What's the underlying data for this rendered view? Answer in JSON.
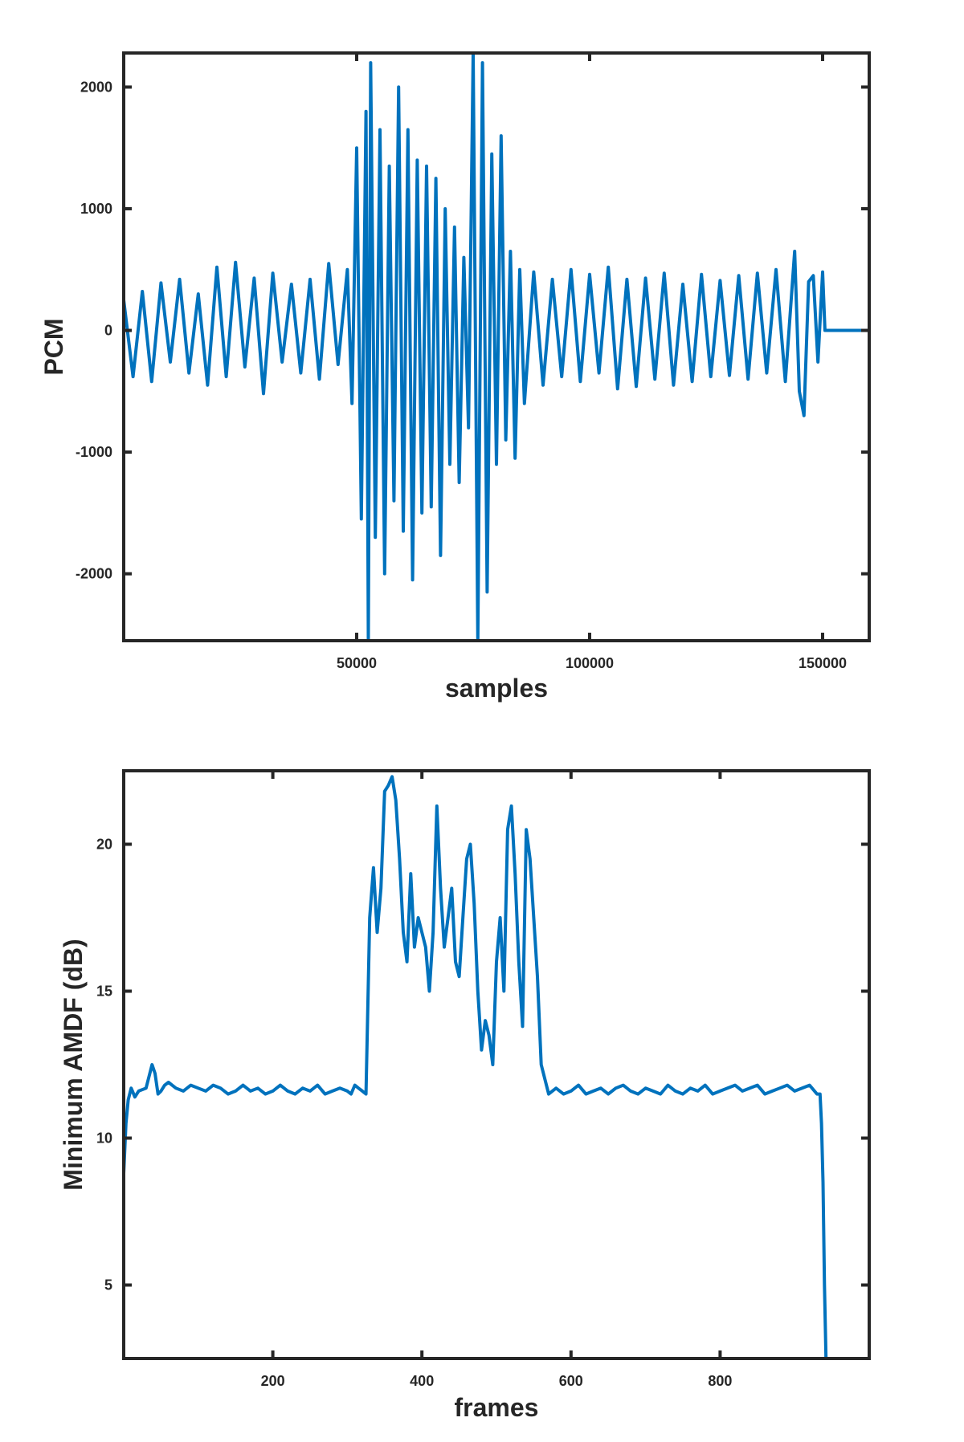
{
  "chart_data": [
    {
      "type": "line",
      "title": "",
      "xlabel": "samples",
      "ylabel": "PCM",
      "xlim": [
        0,
        160000
      ],
      "ylim": [
        -2550,
        2280
      ],
      "xticks": [
        50000,
        100000,
        150000
      ],
      "yticks": [
        -2000,
        -1000,
        0,
        1000,
        2000
      ],
      "xtick_labels": [
        "50000",
        "100000",
        "150000"
      ],
      "ytick_labels": [
        "-2000",
        "-1000",
        "0",
        "1000",
        "2000"
      ],
      "grid": false,
      "color": "#0072bd",
      "series": [
        {
          "x": [
            0,
            2000,
            4000,
            6000,
            8000,
            10000,
            12000,
            14000,
            16000,
            18000,
            20000,
            22000,
            24000,
            26000,
            28000,
            30000,
            32000,
            34000,
            36000,
            38000,
            40000,
            42000,
            44000,
            46000,
            48000,
            49000,
            50000,
            51000,
            52000,
            52500,
            53000,
            54000,
            55000,
            56000,
            57000,
            58000,
            59000,
            60000,
            61000,
            62000,
            63000,
            64000,
            65000,
            66000,
            67000,
            68000,
            69000,
            70000,
            71000,
            72000,
            73000,
            74000,
            75000,
            76000,
            77000,
            78000,
            79000,
            80000,
            81000,
            82000,
            83000,
            84000,
            85000,
            86000,
            88000,
            90000,
            92000,
            94000,
            96000,
            98000,
            100000,
            102000,
            104000,
            106000,
            108000,
            110000,
            112000,
            114000,
            116000,
            118000,
            120000,
            122000,
            124000,
            126000,
            128000,
            130000,
            132000,
            134000,
            136000,
            138000,
            140000,
            142000,
            144000,
            145000,
            146000,
            147000,
            148000,
            149000,
            150000,
            150500,
            155000,
            160000
          ],
          "y": [
            250,
            -380,
            320,
            -420,
            390,
            -260,
            420,
            -350,
            300,
            -450,
            520,
            -380,
            560,
            -300,
            430,
            -520,
            470,
            -260,
            380,
            -350,
            420,
            -400,
            550,
            -280,
            500,
            -600,
            1500,
            -1550,
            1800,
            -2550,
            2200,
            -1700,
            1650,
            -2000,
            1350,
            -1400,
            2000,
            -1650,
            1650,
            -2050,
            1400,
            -1500,
            1350,
            -1450,
            1250,
            -1850,
            1000,
            -1100,
            850,
            -1250,
            600,
            -800,
            2280,
            -2550,
            2200,
            -2150,
            1450,
            -1100,
            1600,
            -900,
            650,
            -1050,
            500,
            -600,
            480,
            -450,
            420,
            -380,
            500,
            -420,
            460,
            -350,
            520,
            -480,
            420,
            -460,
            430,
            -400,
            470,
            -450,
            380,
            -420,
            460,
            -380,
            410,
            -370,
            450,
            -400,
            470,
            -350,
            500,
            -420,
            650,
            -500,
            -700,
            400,
            450,
            -260,
            480,
            0,
            0,
            0
          ]
        }
      ]
    },
    {
      "type": "line",
      "title": "",
      "xlabel": "frames",
      "ylabel": "Minimum AMDF (dB)",
      "xlim": [
        0,
        1000
      ],
      "ylim": [
        2.5,
        22.5
      ],
      "xticks": [
        200,
        400,
        600,
        800
      ],
      "yticks": [
        5,
        10,
        15,
        20
      ],
      "xtick_labels": [
        "200",
        "400",
        "600",
        "800"
      ],
      "ytick_labels": [
        "5",
        "10",
        "15",
        "20"
      ],
      "grid": false,
      "color": "#0072bd",
      "series": [
        {
          "x": [
            0,
            3,
            6,
            10,
            15,
            20,
            30,
            38,
            42,
            46,
            50,
            55,
            60,
            70,
            80,
            90,
            100,
            110,
            120,
            130,
            140,
            150,
            160,
            170,
            180,
            190,
            200,
            210,
            220,
            230,
            240,
            250,
            260,
            270,
            280,
            290,
            300,
            305,
            310,
            315,
            320,
            325,
            330,
            335,
            340,
            345,
            350,
            355,
            360,
            365,
            370,
            375,
            380,
            385,
            390,
            395,
            400,
            405,
            410,
            415,
            420,
            425,
            430,
            435,
            440,
            445,
            450,
            455,
            460,
            465,
            470,
            475,
            480,
            485,
            490,
            495,
            500,
            505,
            510,
            515,
            520,
            525,
            530,
            535,
            540,
            545,
            550,
            555,
            560,
            570,
            580,
            590,
            600,
            610,
            620,
            630,
            640,
            650,
            660,
            670,
            680,
            690,
            700,
            710,
            720,
            730,
            740,
            750,
            760,
            770,
            780,
            790,
            800,
            810,
            820,
            830,
            840,
            850,
            860,
            870,
            880,
            890,
            900,
            910,
            920,
            930,
            934,
            936,
            938,
            940,
            942
          ],
          "y": [
            8.8,
            10.5,
            11.3,
            11.7,
            11.4,
            11.6,
            11.7,
            12.5,
            12.2,
            11.5,
            11.6,
            11.8,
            11.9,
            11.7,
            11.6,
            11.8,
            11.7,
            11.6,
            11.8,
            11.7,
            11.5,
            11.6,
            11.8,
            11.6,
            11.7,
            11.5,
            11.6,
            11.8,
            11.6,
            11.5,
            11.7,
            11.6,
            11.8,
            11.5,
            11.6,
            11.7,
            11.6,
            11.5,
            11.8,
            11.7,
            11.6,
            11.5,
            17.5,
            19.2,
            17.0,
            18.5,
            21.8,
            22.0,
            22.3,
            21.5,
            19.5,
            17.0,
            16.0,
            19.0,
            16.5,
            17.5,
            17.0,
            16.5,
            15.0,
            17.0,
            21.3,
            18.5,
            16.5,
            17.5,
            18.5,
            16.0,
            15.5,
            17.5,
            19.5,
            20.0,
            18.0,
            15.0,
            13.0,
            14.0,
            13.5,
            12.5,
            16.0,
            17.5,
            15.0,
            20.5,
            21.3,
            19.0,
            16.0,
            13.8,
            20.5,
            19.5,
            17.5,
            15.5,
            12.5,
            11.5,
            11.7,
            11.5,
            11.6,
            11.8,
            11.5,
            11.6,
            11.7,
            11.5,
            11.7,
            11.8,
            11.6,
            11.5,
            11.7,
            11.6,
            11.5,
            11.8,
            11.6,
            11.5,
            11.7,
            11.6,
            11.8,
            11.5,
            11.6,
            11.7,
            11.8,
            11.6,
            11.7,
            11.8,
            11.5,
            11.6,
            11.7,
            11.8,
            11.6,
            11.7,
            11.8,
            11.5,
            11.5,
            10.5,
            8.5,
            5.0,
            2.5
          ]
        }
      ]
    }
  ]
}
